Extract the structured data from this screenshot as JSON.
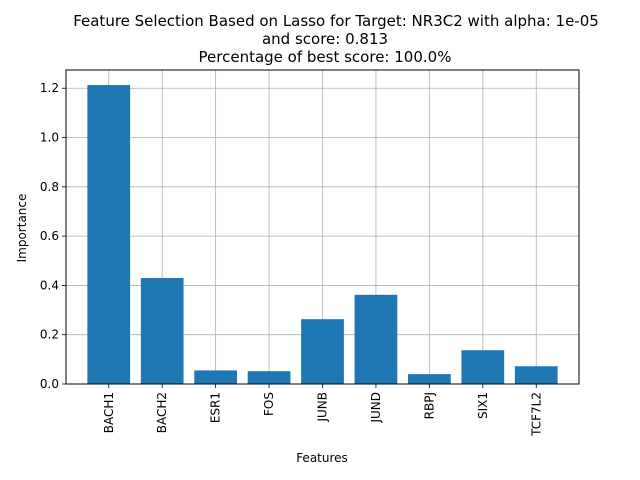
{
  "chart_data": {
    "type": "bar",
    "title_lines": [
      "Feature Selection Based on Lasso for Target: NR3C2 with alpha: 1e-05",
      "and score: 0.813",
      "Percentage of best score: 100.0%"
    ],
    "xlabel": "Features",
    "ylabel": "Importance",
    "categories": [
      "BACH1",
      "BACH2",
      "ESR1",
      "FOS",
      "JUNB",
      "JUND",
      "RBPJ",
      "SIX1",
      "TCF7L2"
    ],
    "values": [
      1.213,
      0.43,
      0.055,
      0.052,
      0.263,
      0.362,
      0.04,
      0.137,
      0.072
    ],
    "ylim": [
      0,
      1.274
    ],
    "yticks": [
      0.0,
      0.2,
      0.4,
      0.6,
      0.8,
      1.0,
      1.2
    ],
    "ytick_labels": [
      "0.0",
      "0.2",
      "0.4",
      "0.6",
      "0.8",
      "1.0",
      "1.2"
    ],
    "grid": true,
    "bar_color": "#1f77b4",
    "grid_color": "#b0b0b0"
  }
}
